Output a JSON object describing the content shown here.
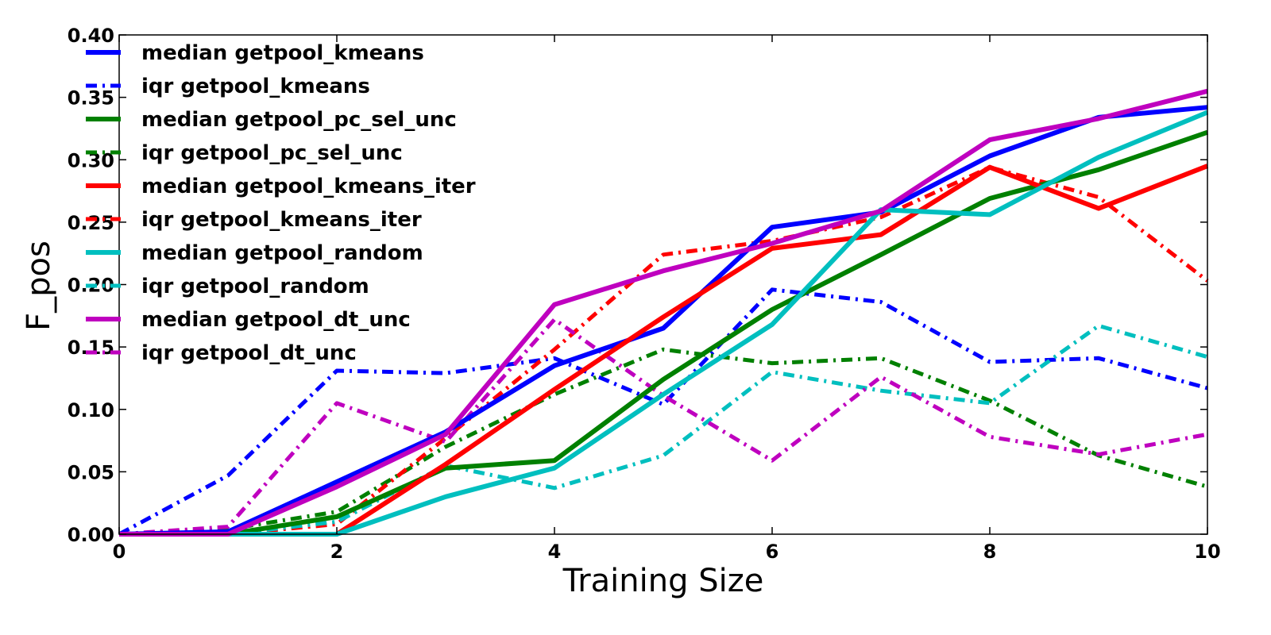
{
  "chart_data": {
    "type": "line",
    "title": "",
    "xlabel": "Training Size",
    "ylabel": "F_pos",
    "xlim": [
      0,
      10
    ],
    "ylim": [
      0,
      0.4
    ],
    "xticks": [
      "0",
      "2",
      "4",
      "6",
      "8",
      "10"
    ],
    "yticks": [
      "0.00",
      "0.05",
      "0.10",
      "0.15",
      "0.20",
      "0.25",
      "0.30",
      "0.35",
      "0.40"
    ],
    "grid": false,
    "legend_position": "top-left",
    "x": [
      0,
      1,
      2,
      3,
      4,
      5,
      6,
      7,
      8,
      9,
      10
    ],
    "series": [
      {
        "name": "median getpool_kmeans",
        "color": "#0000ff",
        "style": "solid",
        "values": [
          0.0,
          0.002,
          0.042,
          0.082,
          0.135,
          0.165,
          0.246,
          0.258,
          0.303,
          0.334,
          0.342
        ]
      },
      {
        "name": "iqr getpool_kmeans",
        "color": "#0000ff",
        "style": "dashdot",
        "values": [
          0.0,
          0.047,
          0.131,
          0.129,
          0.141,
          0.104,
          0.196,
          0.186,
          0.138,
          0.141,
          0.117
        ]
      },
      {
        "name": "median getpool_pc_sel_unc",
        "color": "#008000",
        "style": "solid",
        "values": [
          0.0,
          0.0,
          0.014,
          0.053,
          0.059,
          0.124,
          0.18,
          0.224,
          0.269,
          0.292,
          0.322
        ]
      },
      {
        "name": "iqr getpool_pc_sel_unc",
        "color": "#008000",
        "style": "dashdot",
        "values": [
          0.0,
          0.004,
          0.018,
          0.07,
          0.112,
          0.148,
          0.137,
          0.141,
          0.107,
          0.063,
          0.038
        ]
      },
      {
        "name": "median getpool_kmeans_iter",
        "color": "#ff0000",
        "style": "solid",
        "values": [
          0.0,
          0.0,
          0.0,
          0.056,
          0.116,
          0.174,
          0.229,
          0.24,
          0.294,
          0.261,
          0.295
        ]
      },
      {
        "name": "iqr getpool_kmeans_iter",
        "color": "#ff0000",
        "style": "dashdot",
        "values": [
          0.0,
          0.0,
          0.008,
          0.077,
          0.148,
          0.224,
          0.235,
          0.254,
          0.294,
          0.27,
          0.203
        ]
      },
      {
        "name": "median getpool_random",
        "color": "#00bfbf",
        "style": "solid",
        "values": [
          0.0,
          0.0,
          0.0,
          0.03,
          0.053,
          0.112,
          0.168,
          0.26,
          0.256,
          0.302,
          0.338
        ]
      },
      {
        "name": "iqr getpool_random",
        "color": "#00bfbf",
        "style": "dashdot",
        "values": [
          0.0,
          0.0,
          0.01,
          0.055,
          0.037,
          0.063,
          0.13,
          0.115,
          0.105,
          0.167,
          0.142
        ]
      },
      {
        "name": "median getpool_dt_unc",
        "color": "#bf00bf",
        "style": "solid",
        "values": [
          0.0,
          0.0,
          0.038,
          0.08,
          0.184,
          0.211,
          0.233,
          0.259,
          0.316,
          0.333,
          0.355
        ]
      },
      {
        "name": "iqr getpool_dt_unc",
        "color": "#bf00bf",
        "style": "dashdot",
        "values": [
          0.0,
          0.006,
          0.105,
          0.074,
          0.172,
          0.111,
          0.059,
          0.126,
          0.078,
          0.064,
          0.08
        ]
      }
    ]
  }
}
